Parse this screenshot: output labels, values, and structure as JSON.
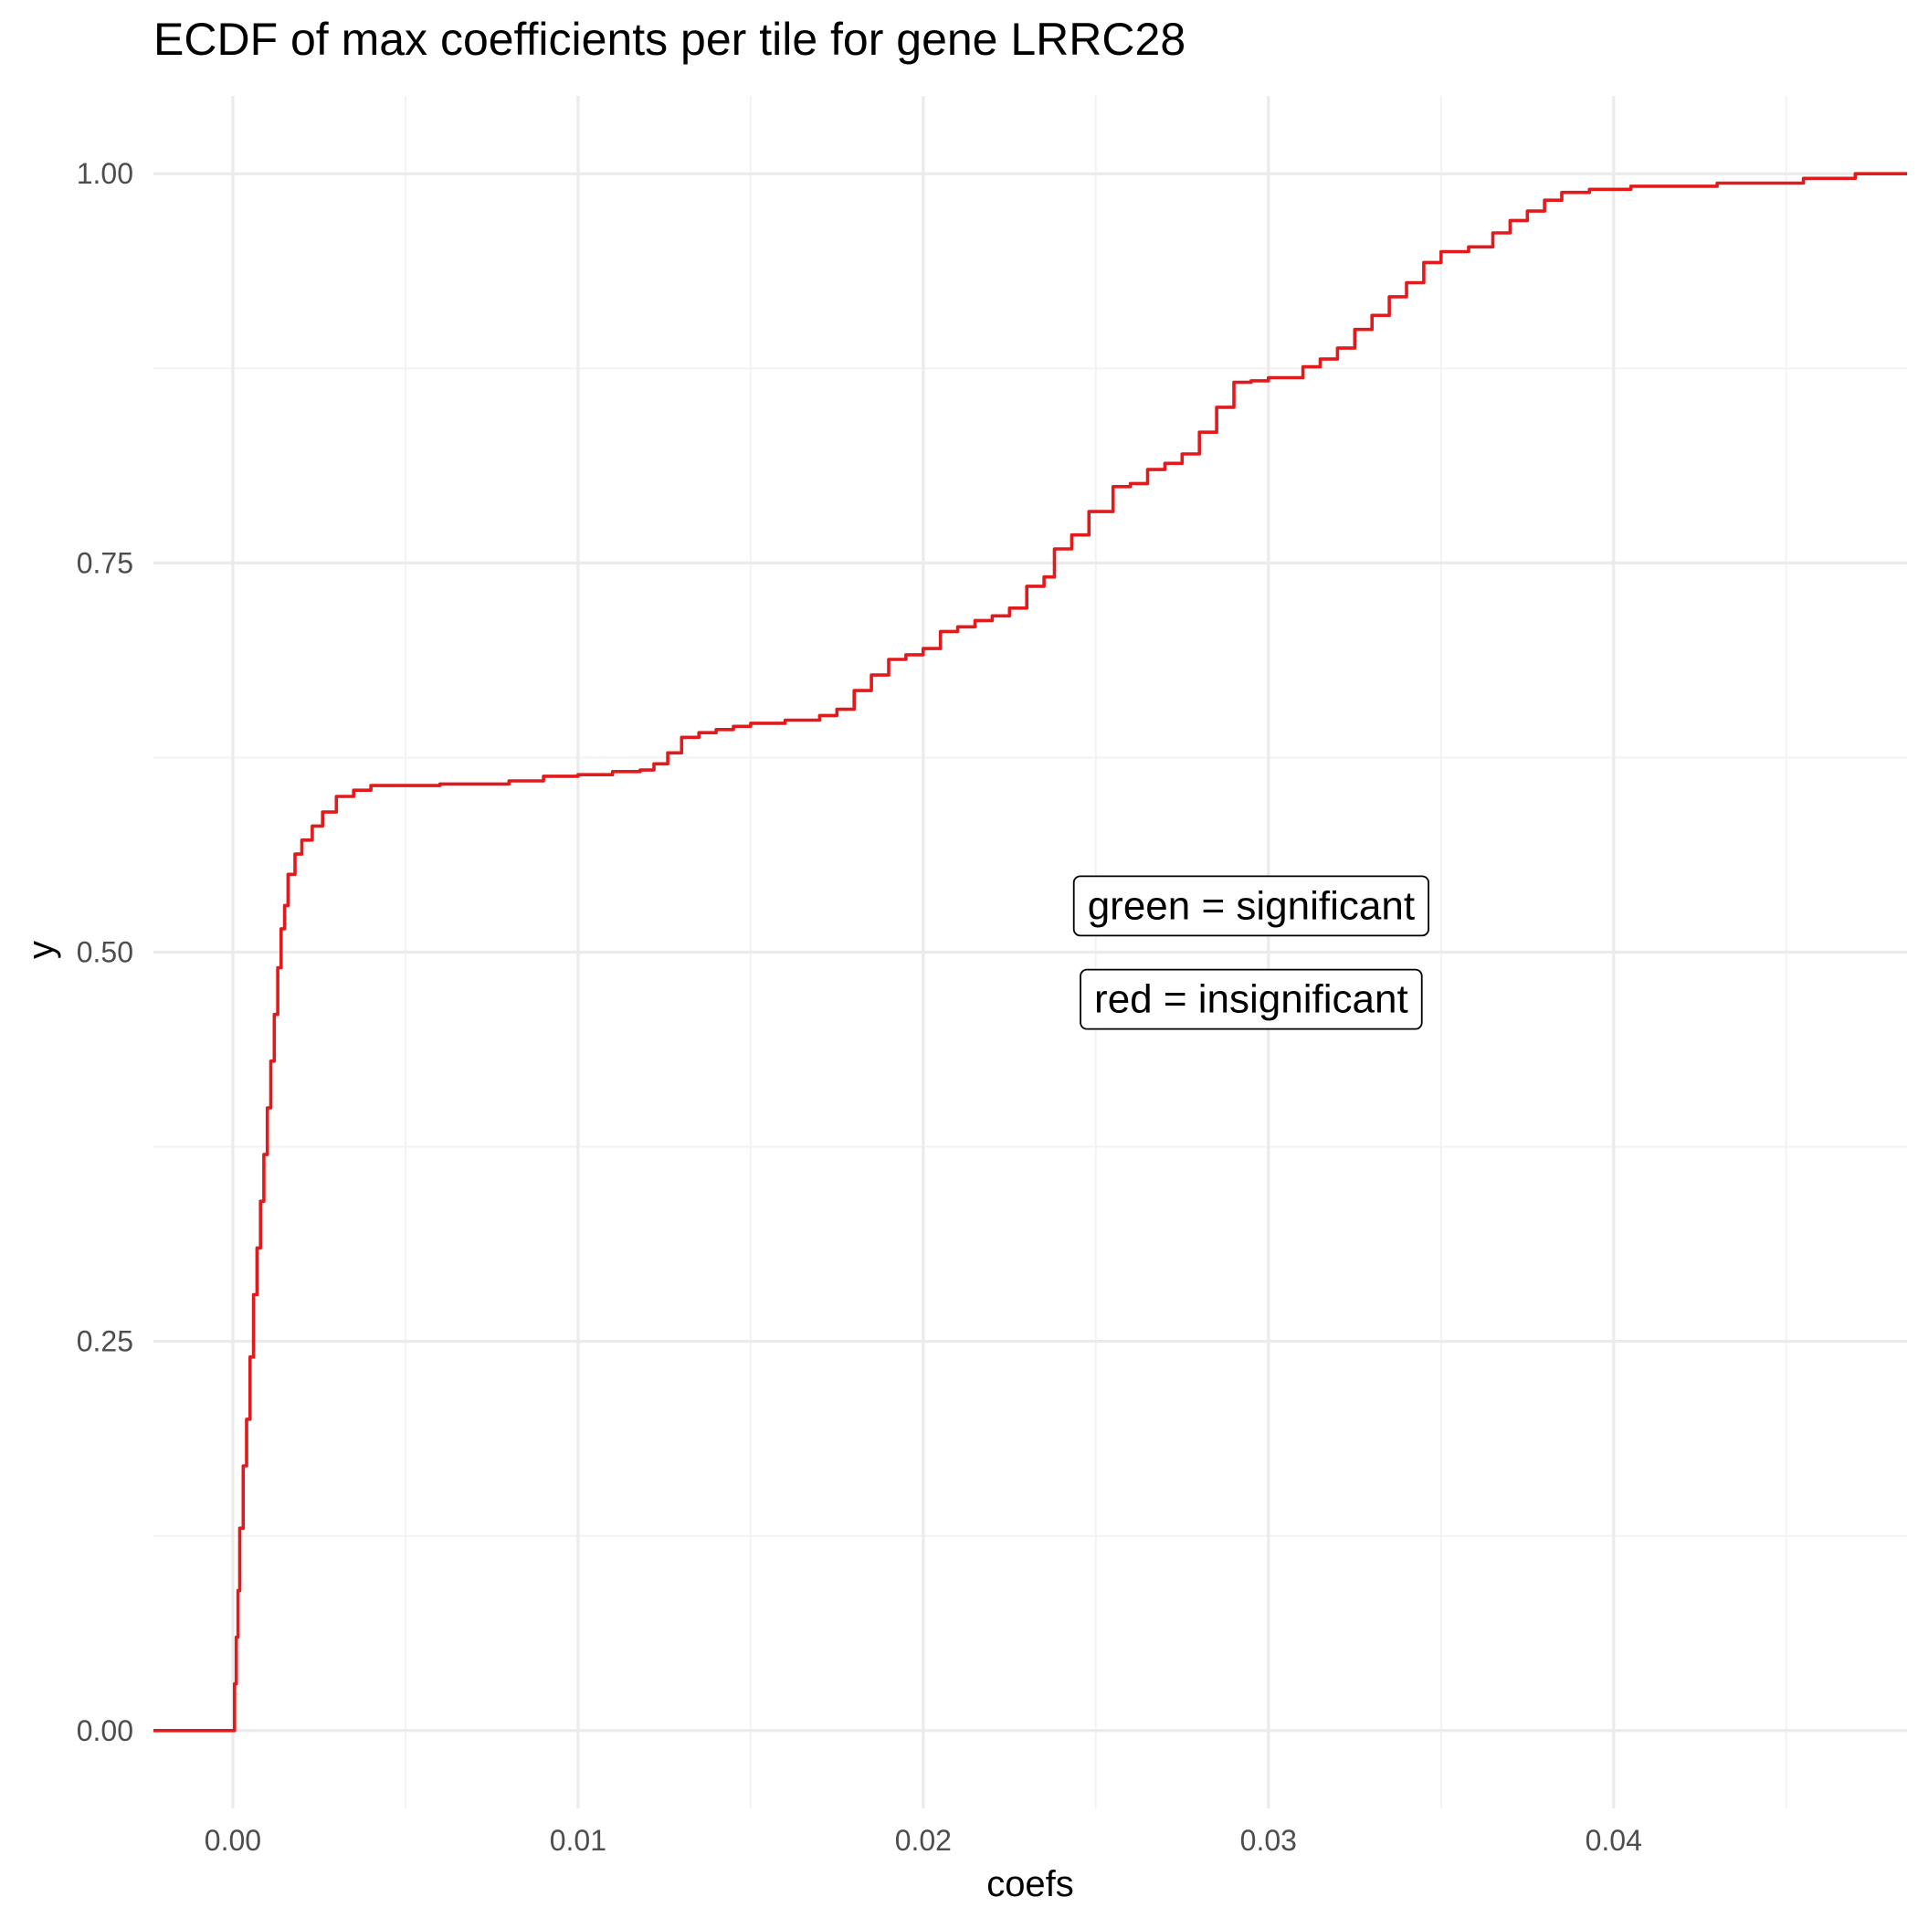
{
  "chart_data": {
    "type": "line",
    "subtype": "ecdf-step",
    "title": "ECDF of max coefficients per tile for gene LRRC28",
    "xlabel": "coefs",
    "ylabel": "y",
    "xlim": [
      -0.0023,
      0.0485
    ],
    "ylim": [
      -0.05,
      1.05
    ],
    "x_ticks": [
      0.0,
      0.01,
      0.02,
      0.03,
      0.04
    ],
    "x_tick_labels": [
      "0.00",
      "0.01",
      "0.02",
      "0.03",
      "0.04"
    ],
    "y_ticks": [
      0.0,
      0.25,
      0.5,
      0.75,
      1.0
    ],
    "y_tick_labels": [
      "0.00",
      "0.25",
      "0.50",
      "0.75",
      "1.00"
    ],
    "grid": true,
    "line_color": "#e31a1c",
    "series": [
      {
        "points": [
          [
            -0.0023,
            0.0
          ],
          [
            0.0,
            0.0
          ],
          [
            5e-05,
            0.03
          ],
          [
            0.0001,
            0.06
          ],
          [
            0.00015,
            0.09
          ],
          [
            0.0002,
            0.13
          ],
          [
            0.0003,
            0.17
          ],
          [
            0.0004,
            0.2
          ],
          [
            0.0005,
            0.24
          ],
          [
            0.0006,
            0.28
          ],
          [
            0.0007,
            0.31
          ],
          [
            0.0008,
            0.34
          ],
          [
            0.0009,
            0.37
          ],
          [
            0.001,
            0.4
          ],
          [
            0.0011,
            0.43
          ],
          [
            0.0012,
            0.46
          ],
          [
            0.0013,
            0.49
          ],
          [
            0.0014,
            0.515
          ],
          [
            0.0015,
            0.53
          ],
          [
            0.0016,
            0.55
          ],
          [
            0.0018,
            0.563
          ],
          [
            0.002,
            0.572
          ],
          [
            0.0023,
            0.581
          ],
          [
            0.0026,
            0.59
          ],
          [
            0.003,
            0.6
          ],
          [
            0.0035,
            0.604
          ],
          [
            0.004,
            0.607
          ],
          [
            0.006,
            0.608
          ],
          [
            0.008,
            0.61
          ],
          [
            0.009,
            0.613
          ],
          [
            0.01,
            0.614
          ],
          [
            0.011,
            0.616
          ],
          [
            0.0118,
            0.617
          ],
          [
            0.0122,
            0.621
          ],
          [
            0.0126,
            0.628
          ],
          [
            0.013,
            0.638
          ],
          [
            0.0135,
            0.641
          ],
          [
            0.014,
            0.643
          ],
          [
            0.0145,
            0.645
          ],
          [
            0.015,
            0.647
          ],
          [
            0.016,
            0.649
          ],
          [
            0.017,
            0.652
          ],
          [
            0.0175,
            0.656
          ],
          [
            0.018,
            0.668
          ],
          [
            0.0185,
            0.678
          ],
          [
            0.019,
            0.688
          ],
          [
            0.0195,
            0.691
          ],
          [
            0.02,
            0.695
          ],
          [
            0.0205,
            0.706
          ],
          [
            0.021,
            0.709
          ],
          [
            0.0215,
            0.713
          ],
          [
            0.022,
            0.716
          ],
          [
            0.0225,
            0.721
          ],
          [
            0.023,
            0.735
          ],
          [
            0.0235,
            0.741
          ],
          [
            0.0238,
            0.759
          ],
          [
            0.0243,
            0.768
          ],
          [
            0.0248,
            0.783
          ],
          [
            0.0255,
            0.799
          ],
          [
            0.026,
            0.801
          ],
          [
            0.0265,
            0.81
          ],
          [
            0.027,
            0.814
          ],
          [
            0.0275,
            0.82
          ],
          [
            0.028,
            0.834
          ],
          [
            0.0285,
            0.85
          ],
          [
            0.029,
            0.866
          ],
          [
            0.0295,
            0.867
          ],
          [
            0.03,
            0.869
          ],
          [
            0.031,
            0.876
          ],
          [
            0.0315,
            0.881
          ],
          [
            0.032,
            0.888
          ],
          [
            0.0325,
            0.9
          ],
          [
            0.033,
            0.909
          ],
          [
            0.0335,
            0.921
          ],
          [
            0.034,
            0.93
          ],
          [
            0.0345,
            0.943
          ],
          [
            0.035,
            0.95
          ],
          [
            0.0358,
            0.953
          ],
          [
            0.0365,
            0.962
          ],
          [
            0.037,
            0.97
          ],
          [
            0.0375,
            0.976
          ],
          [
            0.038,
            0.983
          ],
          [
            0.0385,
            0.988
          ],
          [
            0.0393,
            0.99
          ],
          [
            0.0405,
            0.992
          ],
          [
            0.043,
            0.994
          ],
          [
            0.0455,
            0.997
          ],
          [
            0.047,
            1.0
          ],
          [
            0.0485,
            1.0
          ]
        ]
      }
    ],
    "annotations": [
      {
        "text": "green = significant",
        "x": 0.0295,
        "y": 0.53
      },
      {
        "text": "red = insignificant",
        "x": 0.0295,
        "y": 0.47
      }
    ]
  }
}
